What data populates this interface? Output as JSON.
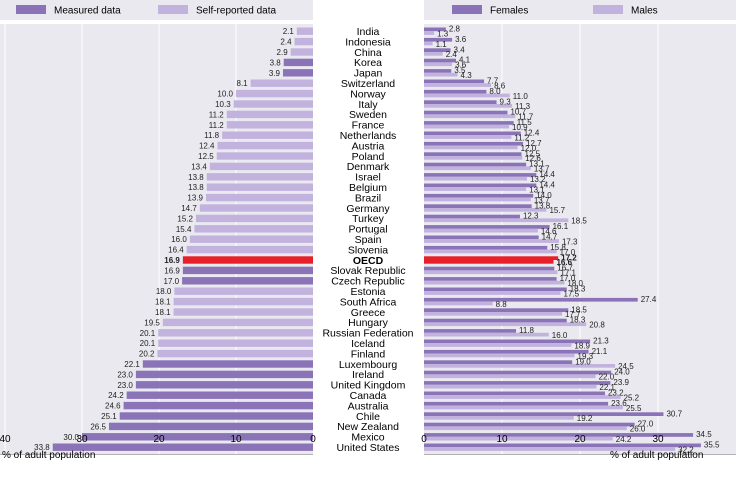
{
  "chart_data": [
    {
      "type": "bar",
      "orientation": "horizontal",
      "direction": "right-to-left",
      "legend": {
        "placement": "top",
        "entries": [
          "Measured data",
          "Self-reported data"
        ]
      },
      "colors": {
        "Measured data": "#8b73b8",
        "Self-reported data": "#c2b3de",
        "OECD": "#e8202a"
      },
      "xlim": [
        0,
        40
      ],
      "xticks": [
        40,
        30,
        20,
        10,
        0
      ],
      "xlabel": "% of adult population",
      "categories": [
        "India",
        "Indonesia",
        "China",
        "Korea",
        "Japan",
        "Switzerland",
        "Norway",
        "Italy",
        "Sweden",
        "France",
        "Netherlands",
        "Austria",
        "Poland",
        "Denmark",
        "Israel",
        "Belgium",
        "Brazil",
        "Germany",
        "Turkey",
        "Portugal",
        "Spain",
        "Slovenia",
        "OECD",
        "Slovak Republic",
        "Czech Republic",
        "Estonia",
        "South Africa",
        "Greece",
        "Hungary",
        "Russian Federation",
        "Iceland",
        "Finland",
        "Luxembourg",
        "Ireland",
        "United Kingdom",
        "Canada",
        "Australia",
        "Chile",
        "New Zealand",
        "Mexico",
        "United States"
      ],
      "values": [
        2.1,
        2.4,
        2.9,
        3.8,
        3.9,
        8.1,
        10.0,
        10.3,
        11.2,
        11.2,
        11.8,
        12.4,
        12.5,
        13.4,
        13.8,
        13.8,
        13.9,
        14.7,
        15.2,
        15.4,
        16.0,
        16.4,
        16.9,
        16.9,
        17.0,
        18.0,
        18.1,
        18.1,
        19.5,
        20.1,
        20.1,
        20.2,
        22.1,
        23.0,
        23.0,
        24.2,
        24.6,
        25.1,
        26.5,
        30.0,
        33.8
      ],
      "data_type": [
        "S",
        "S",
        "S",
        "M",
        "M",
        "S",
        "S",
        "S",
        "S",
        "S",
        "S",
        "S",
        "S",
        "S",
        "S",
        "S",
        "S",
        "S",
        "S",
        "S",
        "S",
        "S",
        "OECD",
        "M",
        "M",
        "S",
        "S",
        "S",
        "S",
        "S",
        "S",
        "S",
        "M",
        "M",
        "M",
        "M",
        "M",
        "M",
        "M",
        "M",
        "M"
      ]
    },
    {
      "type": "bar",
      "orientation": "horizontal",
      "legend": {
        "placement": "top",
        "entries": [
          "Females",
          "Males"
        ]
      },
      "colors": {
        "Females": "#8b73b8",
        "Males": "#c2b3de",
        "OECD": "#e8202a"
      },
      "xlim": [
        0,
        40
      ],
      "xticks": [
        0,
        10,
        20,
        30
      ],
      "xlabel": "% of adult population",
      "categories": [
        "India",
        "Indonesia",
        "China",
        "Korea",
        "Japan",
        "Switzerland",
        "Norway",
        "Italy",
        "Sweden",
        "France",
        "Netherlands",
        "Austria",
        "Poland",
        "Denmark",
        "Israel",
        "Belgium",
        "Brazil",
        "Germany",
        "Turkey",
        "Portugal",
        "Spain",
        "Slovenia",
        "OECD",
        "Slovak Republic",
        "Czech Republic",
        "Estonia",
        "South Africa",
        "Greece",
        "Hungary",
        "Russian Federation",
        "Iceland",
        "Finland",
        "Luxembourg",
        "Ireland",
        "United Kingdom",
        "Canada",
        "Australia",
        "Chile",
        "New Zealand",
        "Mexico",
        "United States"
      ],
      "series": [
        {
          "name": "Females",
          "values": [
            2.8,
            3.6,
            3.4,
            4.1,
            3.5,
            7.7,
            8.0,
            9.3,
            10.7,
            11.5,
            12.4,
            12.7,
            12.5,
            13.1,
            14.4,
            14.4,
            14.0,
            13.8,
            12.3,
            16.1,
            14.7,
            15.8,
            17.2,
            16.7,
            17.0,
            18.3,
            27.4,
            18.5,
            18.3,
            11.8,
            21.3,
            21.1,
            19.0,
            24.0,
            23.9,
            23.2,
            23.6,
            30.7,
            27.0,
            34.5,
            35.5
          ]
        },
        {
          "name": "Males",
          "values": [
            1.3,
            1.1,
            2.4,
            3.6,
            4.3,
            8.6,
            11.0,
            11.3,
            11.7,
            10.9,
            11.2,
            12.0,
            12.6,
            13.7,
            13.2,
            13.1,
            13.7,
            15.7,
            18.5,
            14.6,
            17.3,
            17.0,
            16.6,
            17.1,
            18.0,
            17.5,
            8.8,
            17.7,
            20.8,
            16.0,
            18.9,
            19.3,
            24.5,
            22.0,
            22.1,
            25.2,
            25.5,
            19.2,
            26.0,
            24.2,
            32.2
          ]
        }
      ]
    }
  ]
}
